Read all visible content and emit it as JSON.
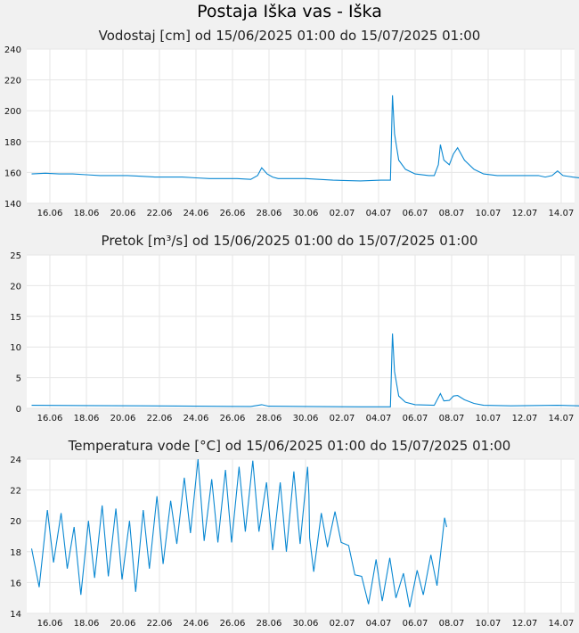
{
  "title": "Postaja Iška vas - Iška",
  "chart_data": [
    {
      "type": "line",
      "title": "Vodostaj [cm] od 15/06/2025 01:00 do 15/07/2025 01:00",
      "ylim": [
        140,
        240
      ],
      "yticks": [
        140,
        160,
        180,
        200,
        220,
        240
      ],
      "xticks": [
        "16.06",
        "18.06",
        "20.06",
        "22.06",
        "24.06",
        "26.06",
        "28.06",
        "30.06",
        "02.07",
        "04.07",
        "06.07",
        "08.07",
        "10.07",
        "12.07",
        "14.07"
      ],
      "xlim_days": [
        0,
        30
      ],
      "grid": true,
      "series": [
        {
          "points": [
            [
              0,
              159
            ],
            [
              1,
              159.5
            ],
            [
              2,
              159
            ],
            [
              3,
              159
            ],
            [
              4,
              158.5
            ],
            [
              5,
              158
            ],
            [
              6,
              158
            ],
            [
              7,
              158
            ],
            [
              8,
              157.5
            ],
            [
              9,
              157
            ],
            [
              10,
              157
            ],
            [
              11,
              157
            ],
            [
              12,
              156.5
            ],
            [
              13,
              156
            ],
            [
              14,
              156
            ],
            [
              15,
              156
            ],
            [
              16,
              155.5
            ],
            [
              16.5,
              158
            ],
            [
              16.8,
              163
            ],
            [
              17.2,
              159
            ],
            [
              17.6,
              157
            ],
            [
              18,
              156
            ],
            [
              20,
              156
            ],
            [
              22,
              155
            ],
            [
              24,
              154.5
            ],
            [
              25.5,
              155
            ],
            [
              26.2,
              155
            ],
            [
              26.35,
              210
            ],
            [
              26.5,
              185
            ],
            [
              26.8,
              168
            ],
            [
              27.3,
              162
            ],
            [
              28,
              159
            ],
            [
              29,
              158
            ],
            [
              29.4,
              158
            ],
            [
              29.7,
              165
            ],
            [
              29.85,
              178
            ],
            [
              30.1,
              168
            ],
            [
              30.5,
              165
            ],
            [
              30.8,
              172
            ],
            [
              31.1,
              176
            ],
            [
              31.6,
              168
            ],
            [
              32.3,
              162
            ],
            [
              33,
              159
            ],
            [
              34,
              158
            ],
            [
              36,
              158
            ],
            [
              37,
              158
            ],
            [
              37.5,
              157
            ],
            [
              38,
              158
            ],
            [
              38.4,
              161
            ],
            [
              38.8,
              158
            ],
            [
              39.5,
              157
            ],
            [
              40,
              156.5
            ]
          ]
        }
      ]
    },
    {
      "type": "line",
      "title": "Pretok [m³/s] od 15/06/2025 01:00 do 15/07/2025 01:00",
      "ylim": [
        0,
        25
      ],
      "yticks": [
        0,
        5,
        10,
        15,
        20,
        25
      ],
      "xticks": [
        "16.06",
        "18.06",
        "20.06",
        "22.06",
        "24.06",
        "26.06",
        "28.06",
        "30.06",
        "02.07",
        "04.07",
        "06.07",
        "08.07",
        "10.07",
        "12.07",
        "14.07"
      ],
      "xlim_days": [
        0,
        30
      ],
      "grid": true,
      "series": [
        {
          "points": [
            [
              0,
              0.5
            ],
            [
              4,
              0.45
            ],
            [
              8,
              0.4
            ],
            [
              12,
              0.35
            ],
            [
              16,
              0.3
            ],
            [
              16.8,
              0.6
            ],
            [
              17.3,
              0.35
            ],
            [
              20,
              0.3
            ],
            [
              24,
              0.25
            ],
            [
              26.2,
              0.25
            ],
            [
              26.35,
              12.2
            ],
            [
              26.5,
              6
            ],
            [
              26.8,
              2
            ],
            [
              27.3,
              1
            ],
            [
              28,
              0.6
            ],
            [
              29.4,
              0.5
            ],
            [
              29.85,
              2.4
            ],
            [
              30.1,
              1.2
            ],
            [
              30.5,
              1.3
            ],
            [
              30.8,
              2
            ],
            [
              31.1,
              2.1
            ],
            [
              31.6,
              1.4
            ],
            [
              32.3,
              0.8
            ],
            [
              33,
              0.5
            ],
            [
              35,
              0.4
            ],
            [
              38.4,
              0.5
            ],
            [
              40,
              0.4
            ]
          ]
        }
      ]
    },
    {
      "type": "line",
      "title": "Temperatura vode [°C] od 15/06/2025 01:00 do 15/07/2025 01:00",
      "ylim": [
        14,
        24
      ],
      "yticks": [
        14,
        16,
        18,
        20,
        22,
        24
      ],
      "xticks": [
        "16.06",
        "18.06",
        "20.06",
        "22.06",
        "24.06",
        "26.06",
        "28.06",
        "30.06",
        "02.07",
        "04.07",
        "06.07",
        "08.07",
        "10.07",
        "12.07",
        "14.07"
      ],
      "xlim_days": [
        0,
        30
      ],
      "grid": true,
      "series": [
        {
          "points": [
            [
              0,
              18.2
            ],
            [
              0.55,
              15.7
            ],
            [
              1.15,
              20.7
            ],
            [
              1.6,
              17.3
            ],
            [
              2.15,
              20.5
            ],
            [
              2.6,
              16.9
            ],
            [
              3.1,
              19.6
            ],
            [
              3.6,
              15.2
            ],
            [
              4.15,
              20
            ],
            [
              4.6,
              16.3
            ],
            [
              5.15,
              21
            ],
            [
              5.6,
              16.4
            ],
            [
              6.15,
              20.8
            ],
            [
              6.6,
              16.2
            ],
            [
              7.15,
              20
            ],
            [
              7.6,
              15.4
            ],
            [
              8.15,
              20.7
            ],
            [
              8.6,
              16.9
            ],
            [
              9.15,
              21.6
            ],
            [
              9.6,
              17.2
            ],
            [
              10.15,
              21.3
            ],
            [
              10.6,
              18.5
            ],
            [
              11.15,
              22.8
            ],
            [
              11.6,
              19.2
            ],
            [
              12.15,
              24
            ],
            [
              12.6,
              18.7
            ],
            [
              13.15,
              22.7
            ],
            [
              13.6,
              18.6
            ],
            [
              14.15,
              23.3
            ],
            [
              14.6,
              18.6
            ],
            [
              15.15,
              23.5
            ],
            [
              15.6,
              19.3
            ],
            [
              16.15,
              23.9
            ],
            [
              16.6,
              19.3
            ],
            [
              17.15,
              22.5
            ],
            [
              17.6,
              18.1
            ],
            [
              18.15,
              22.5
            ],
            [
              18.6,
              18
            ],
            [
              19.15,
              23.2
            ],
            [
              19.6,
              18.5
            ],
            [
              20.15,
              23.5
            ],
            [
              20.25,
              21.7
            ],
            [
              20.3,
              18.9
            ],
            [
              20.6,
              16.7
            ],
            [
              21.15,
              20.5
            ],
            [
              21.6,
              18.3
            ],
            [
              22.15,
              20.6
            ],
            [
              22.6,
              18.6
            ],
            [
              23.15,
              18.4
            ],
            [
              23.6,
              16.5
            ],
            [
              24.1,
              16.4
            ],
            [
              24.6,
              14.6
            ],
            [
              25.15,
              17.5
            ],
            [
              25.6,
              14.8
            ],
            [
              26.15,
              17.6
            ],
            [
              26.6,
              15
            ],
            [
              27.15,
              16.6
            ],
            [
              27.6,
              14.4
            ],
            [
              28.15,
              16.8
            ],
            [
              28.6,
              15.2
            ],
            [
              29.15,
              17.8
            ],
            [
              29.6,
              15.8
            ],
            [
              30.15,
              20.2
            ],
            [
              30.3,
              19.6
            ]
          ]
        }
      ]
    }
  ]
}
